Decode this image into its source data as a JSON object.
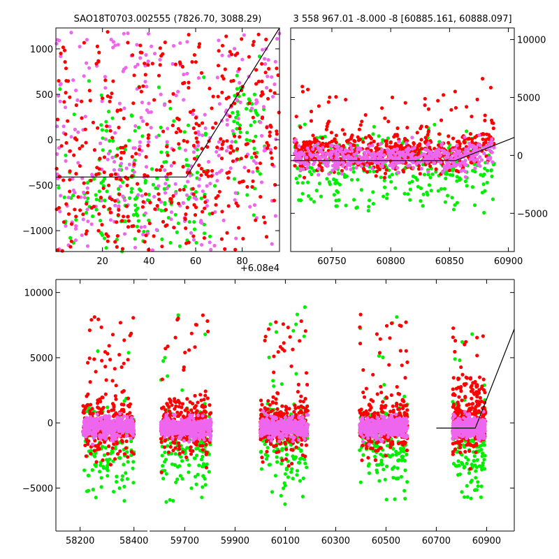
{
  "chart_data": [
    {
      "type": "scatter",
      "title": "SAO18T0703.002555 (7826.70, 3088.29)",
      "xlim": [
        0,
        96
      ],
      "ylim": [
        -1230,
        1230
      ],
      "x_offset_label": "+6.08e4",
      "xticks": [
        20,
        40,
        60,
        80
      ],
      "yticks": [
        1000,
        500,
        0,
        -500,
        -1000
      ],
      "series": [
        {
          "name": "red",
          "color": "#ff0000"
        },
        {
          "name": "green",
          "color": "#00ee00"
        },
        {
          "name": "violet",
          "color": "#ee66ee"
        }
      ],
      "model_line": {
        "x": [
          0,
          56,
          96
        ],
        "y": [
          -410,
          -410,
          1230
        ]
      }
    },
    {
      "type": "scatter",
      "title": "3 558 967.01 -8.000 -8 [60885.161, 60888.097]",
      "xlim": [
        60715,
        60905
      ],
      "ylim": [
        -8300,
        11000
      ],
      "xticks": [
        60750,
        60800,
        60850,
        60900
      ],
      "yticks": [
        10000,
        5000,
        0,
        -5000
      ],
      "y_axis_side": "right",
      "series": [
        {
          "name": "red",
          "color": "#ff0000"
        },
        {
          "name": "green",
          "color": "#00ee00"
        },
        {
          "name": "violet",
          "color": "#ee66ee"
        }
      ],
      "model_line": {
        "x": [
          60715,
          60855,
          60905
        ],
        "y": [
          -450,
          -450,
          1550
        ]
      }
    },
    {
      "type": "scatter",
      "title": "",
      "xlim_segments": [
        [
          58110,
          58450
        ],
        [
          59560,
          61010
        ]
      ],
      "ylim": [
        -8300,
        11000
      ],
      "xticks_left": [
        58200,
        58400
      ],
      "xticks_right": [
        59700,
        59900,
        60100,
        60300,
        60500,
        60700,
        60900
      ],
      "yticks": [
        10000,
        5000,
        0,
        -5000
      ],
      "seasons": [
        {
          "center": 58305,
          "width": 190,
          "segment": 0
        },
        {
          "center": 59705,
          "width": 200,
          "segment": 1
        },
        {
          "center": 60095,
          "width": 190,
          "segment": 1
        },
        {
          "center": 60490,
          "width": 190,
          "segment": 1
        },
        {
          "center": 60830,
          "width": 130,
          "segment": 1
        }
      ],
      "series": [
        {
          "name": "red",
          "color": "#ff0000"
        },
        {
          "name": "green",
          "color": "#00ee00"
        },
        {
          "name": "violet",
          "color": "#ee66ee"
        }
      ],
      "model_line": {
        "x": [
          60700,
          60855,
          61010
        ],
        "y": [
          -400,
          -400,
          7200
        ]
      }
    }
  ]
}
